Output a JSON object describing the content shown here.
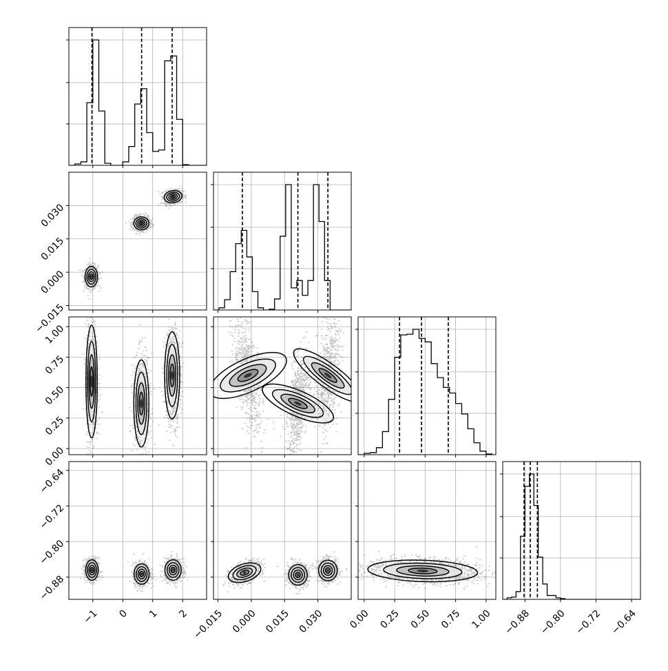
{
  "chart_data": {
    "type": "corner",
    "parameters": 4,
    "x_axes": [
      {
        "range": [
          -1.8,
          2.8
        ],
        "ticks": [
          -1,
          0,
          1,
          2
        ],
        "tick_labels": [
          "−1",
          "0",
          "1",
          "2"
        ]
      },
      {
        "range": [
          -0.017,
          0.045
        ],
        "ticks": [
          -0.015,
          0.0,
          0.015,
          0.03
        ],
        "tick_labels": [
          "−0.015",
          "0.000",
          "0.015",
          "0.030"
        ]
      },
      {
        "range": [
          -0.05,
          1.08
        ],
        "ticks": [
          0.0,
          0.25,
          0.5,
          0.75,
          1.0
        ],
        "tick_labels": [
          "0.00",
          "0.25",
          "0.50",
          "0.75",
          "1.00"
        ]
      },
      {
        "range": [
          -0.93,
          -0.62
        ],
        "ticks": [
          -0.88,
          -0.8,
          -0.72,
          -0.64
        ],
        "tick_labels": [
          "−0.88",
          "−0.80",
          "−0.72",
          "−0.64"
        ]
      }
    ],
    "y_axes": [
      null,
      {
        "range": [
          -0.017,
          0.045
        ],
        "ticks": [
          -0.015,
          0.0,
          0.015,
          0.03
        ],
        "tick_labels": [
          "−0.015",
          "0.000",
          "0.015",
          "0.030"
        ]
      },
      {
        "range": [
          -0.05,
          1.08
        ],
        "ticks": [
          0.0,
          0.25,
          0.5,
          0.75,
          1.0
        ],
        "tick_labels": [
          "0.00",
          "0.25",
          "0.50",
          "0.75",
          "1.00"
        ]
      },
      {
        "range": [
          -0.93,
          -0.62
        ],
        "ticks": [
          -0.88,
          -0.8,
          -0.72,
          -0.64
        ],
        "tick_labels": [
          "−0.88",
          "−0.80",
          "−0.72",
          "−0.64"
        ]
      }
    ],
    "histograms": [
      {
        "bins": [
          -1.8,
          -1.6,
          -1.4,
          -1.2,
          -1.0,
          -0.8,
          -0.6,
          -0.4,
          -0.2,
          0.0,
          0.2,
          0.4,
          0.6,
          0.8,
          1.0,
          1.2,
          1.4,
          1.6,
          1.8,
          2.0,
          2.2,
          2.4,
          2.6,
          2.8
        ],
        "counts": [
          0,
          2,
          5,
          90,
          180,
          78,
          3,
          0,
          0,
          5,
          27,
          88,
          110,
          47,
          20,
          22,
          150,
          157,
          66,
          1,
          0,
          0,
          0
        ],
        "quantiles": [
          -1.03,
          0.63,
          1.65
        ]
      },
      {
        "bins": [
          -0.017,
          -0.0145,
          -0.012,
          -0.0095,
          -0.007,
          -0.0045,
          -0.002,
          0.0005,
          0.003,
          0.0055,
          0.008,
          0.0105,
          0.013,
          0.0155,
          0.018,
          0.0205,
          0.023,
          0.0255,
          0.028,
          0.0305,
          0.033,
          0.0355,
          0.038,
          0.0405,
          0.043,
          0.0455
        ],
        "counts": [
          0,
          3,
          14,
          52,
          90,
          108,
          72,
          25,
          3,
          0,
          1,
          15,
          100,
          170,
          30,
          40,
          20,
          40,
          170,
          120,
          40,
          0,
          0,
          0,
          0
        ],
        "quantiles": [
          -0.004,
          0.021,
          0.0345
        ]
      },
      {
        "bins": [
          -0.05,
          0.0,
          0.05,
          0.1,
          0.15,
          0.2,
          0.25,
          0.3,
          0.35,
          0.4,
          0.45,
          0.5,
          0.55,
          0.6,
          0.65,
          0.7,
          0.75,
          0.8,
          0.85,
          0.9,
          0.95,
          1.0,
          1.05
        ],
        "counts": [
          0,
          2,
          3,
          10,
          33,
          79,
          139,
          171,
          172,
          179,
          166,
          161,
          130,
          110,
          96,
          88,
          73,
          58,
          37,
          17,
          5,
          1
        ],
        "quantiles": [
          0.29,
          0.47,
          0.69
        ]
      },
      {
        "bins": [
          -0.93,
          -0.92,
          -0.91,
          -0.9,
          -0.89,
          -0.88,
          -0.87,
          -0.86,
          -0.85,
          -0.84,
          -0.83,
          -0.82,
          -0.81,
          -0.8,
          -0.79,
          -0.78,
          -0.77,
          -0.76,
          -0.74,
          -0.72,
          -0.7,
          -0.68,
          -0.66,
          -0.64,
          -0.62
        ],
        "counts": [
          0,
          2,
          3,
          10,
          82,
          147,
          163,
          122,
          55,
          20,
          5,
          5,
          2,
          1,
          0,
          0,
          0,
          0,
          0,
          0,
          0,
          0,
          0,
          0
        ],
        "quantiles": [
          -0.882,
          -0.868,
          -0.852
        ]
      }
    ],
    "clusters": [
      {
        "row": 1,
        "col": 0,
        "centers": [
          [
            -1.05,
            -0.002
          ],
          [
            0.62,
            0.022
          ],
          [
            1.68,
            0.034
          ]
        ],
        "sigma": [
          [
            0.1,
            0.0022
          ],
          [
            0.12,
            0.0014
          ],
          [
            0.13,
            0.0014
          ]
        ],
        "rho": [
          0,
          0,
          0.2
        ]
      },
      {
        "row": 2,
        "col": 0,
        "centers": [
          [
            -1.04,
            0.55
          ],
          [
            0.62,
            0.37
          ],
          [
            1.65,
            0.6
          ]
        ],
        "sigma": [
          [
            0.09,
            0.22
          ],
          [
            0.12,
            0.17
          ],
          [
            0.12,
            0.17
          ]
        ],
        "rho": [
          0,
          0,
          0
        ]
      },
      {
        "row": 2,
        "col": 1,
        "centers": [
          [
            -0.0015,
            0.6
          ],
          [
            0.021,
            0.37
          ],
          [
            0.0345,
            0.6
          ]
        ],
        "sigma": [
          [
            0.0028,
            0.2
          ],
          [
            0.0022,
            0.18
          ],
          [
            0.0022,
            0.18
          ]
        ],
        "rho": [
          -0.55,
          0.5,
          0.3
        ]
      },
      {
        "row": 3,
        "col": 0,
        "centers": [
          [
            -1.03,
            -0.864
          ],
          [
            0.63,
            -0.873
          ],
          [
            1.68,
            -0.864
          ]
        ],
        "sigma": [
          [
            0.1,
            0.011
          ],
          [
            0.12,
            0.011
          ],
          [
            0.13,
            0.011
          ]
        ],
        "rho": [
          0,
          0,
          0
        ]
      },
      {
        "row": 3,
        "col": 1,
        "centers": [
          [
            -0.003,
            -0.87
          ],
          [
            0.021,
            -0.875
          ],
          [
            0.0345,
            -0.865
          ]
        ],
        "sigma": [
          [
            0.003,
            0.011
          ],
          [
            0.002,
            0.011
          ],
          [
            0.002,
            0.011
          ]
        ],
        "rho": [
          0.45,
          0,
          0
        ]
      },
      {
        "row": 3,
        "col": 2,
        "centers": [
          [
            0.48,
            -0.866
          ]
        ],
        "sigma": [
          [
            0.2,
            0.012
          ]
        ],
        "rho": [
          -0.15
        ]
      }
    ]
  },
  "colors": {
    "line": "#000000",
    "grid": "#b0b0b0",
    "points": "#555555",
    "background": "#ffffff"
  },
  "legend": "none",
  "grid": true
}
